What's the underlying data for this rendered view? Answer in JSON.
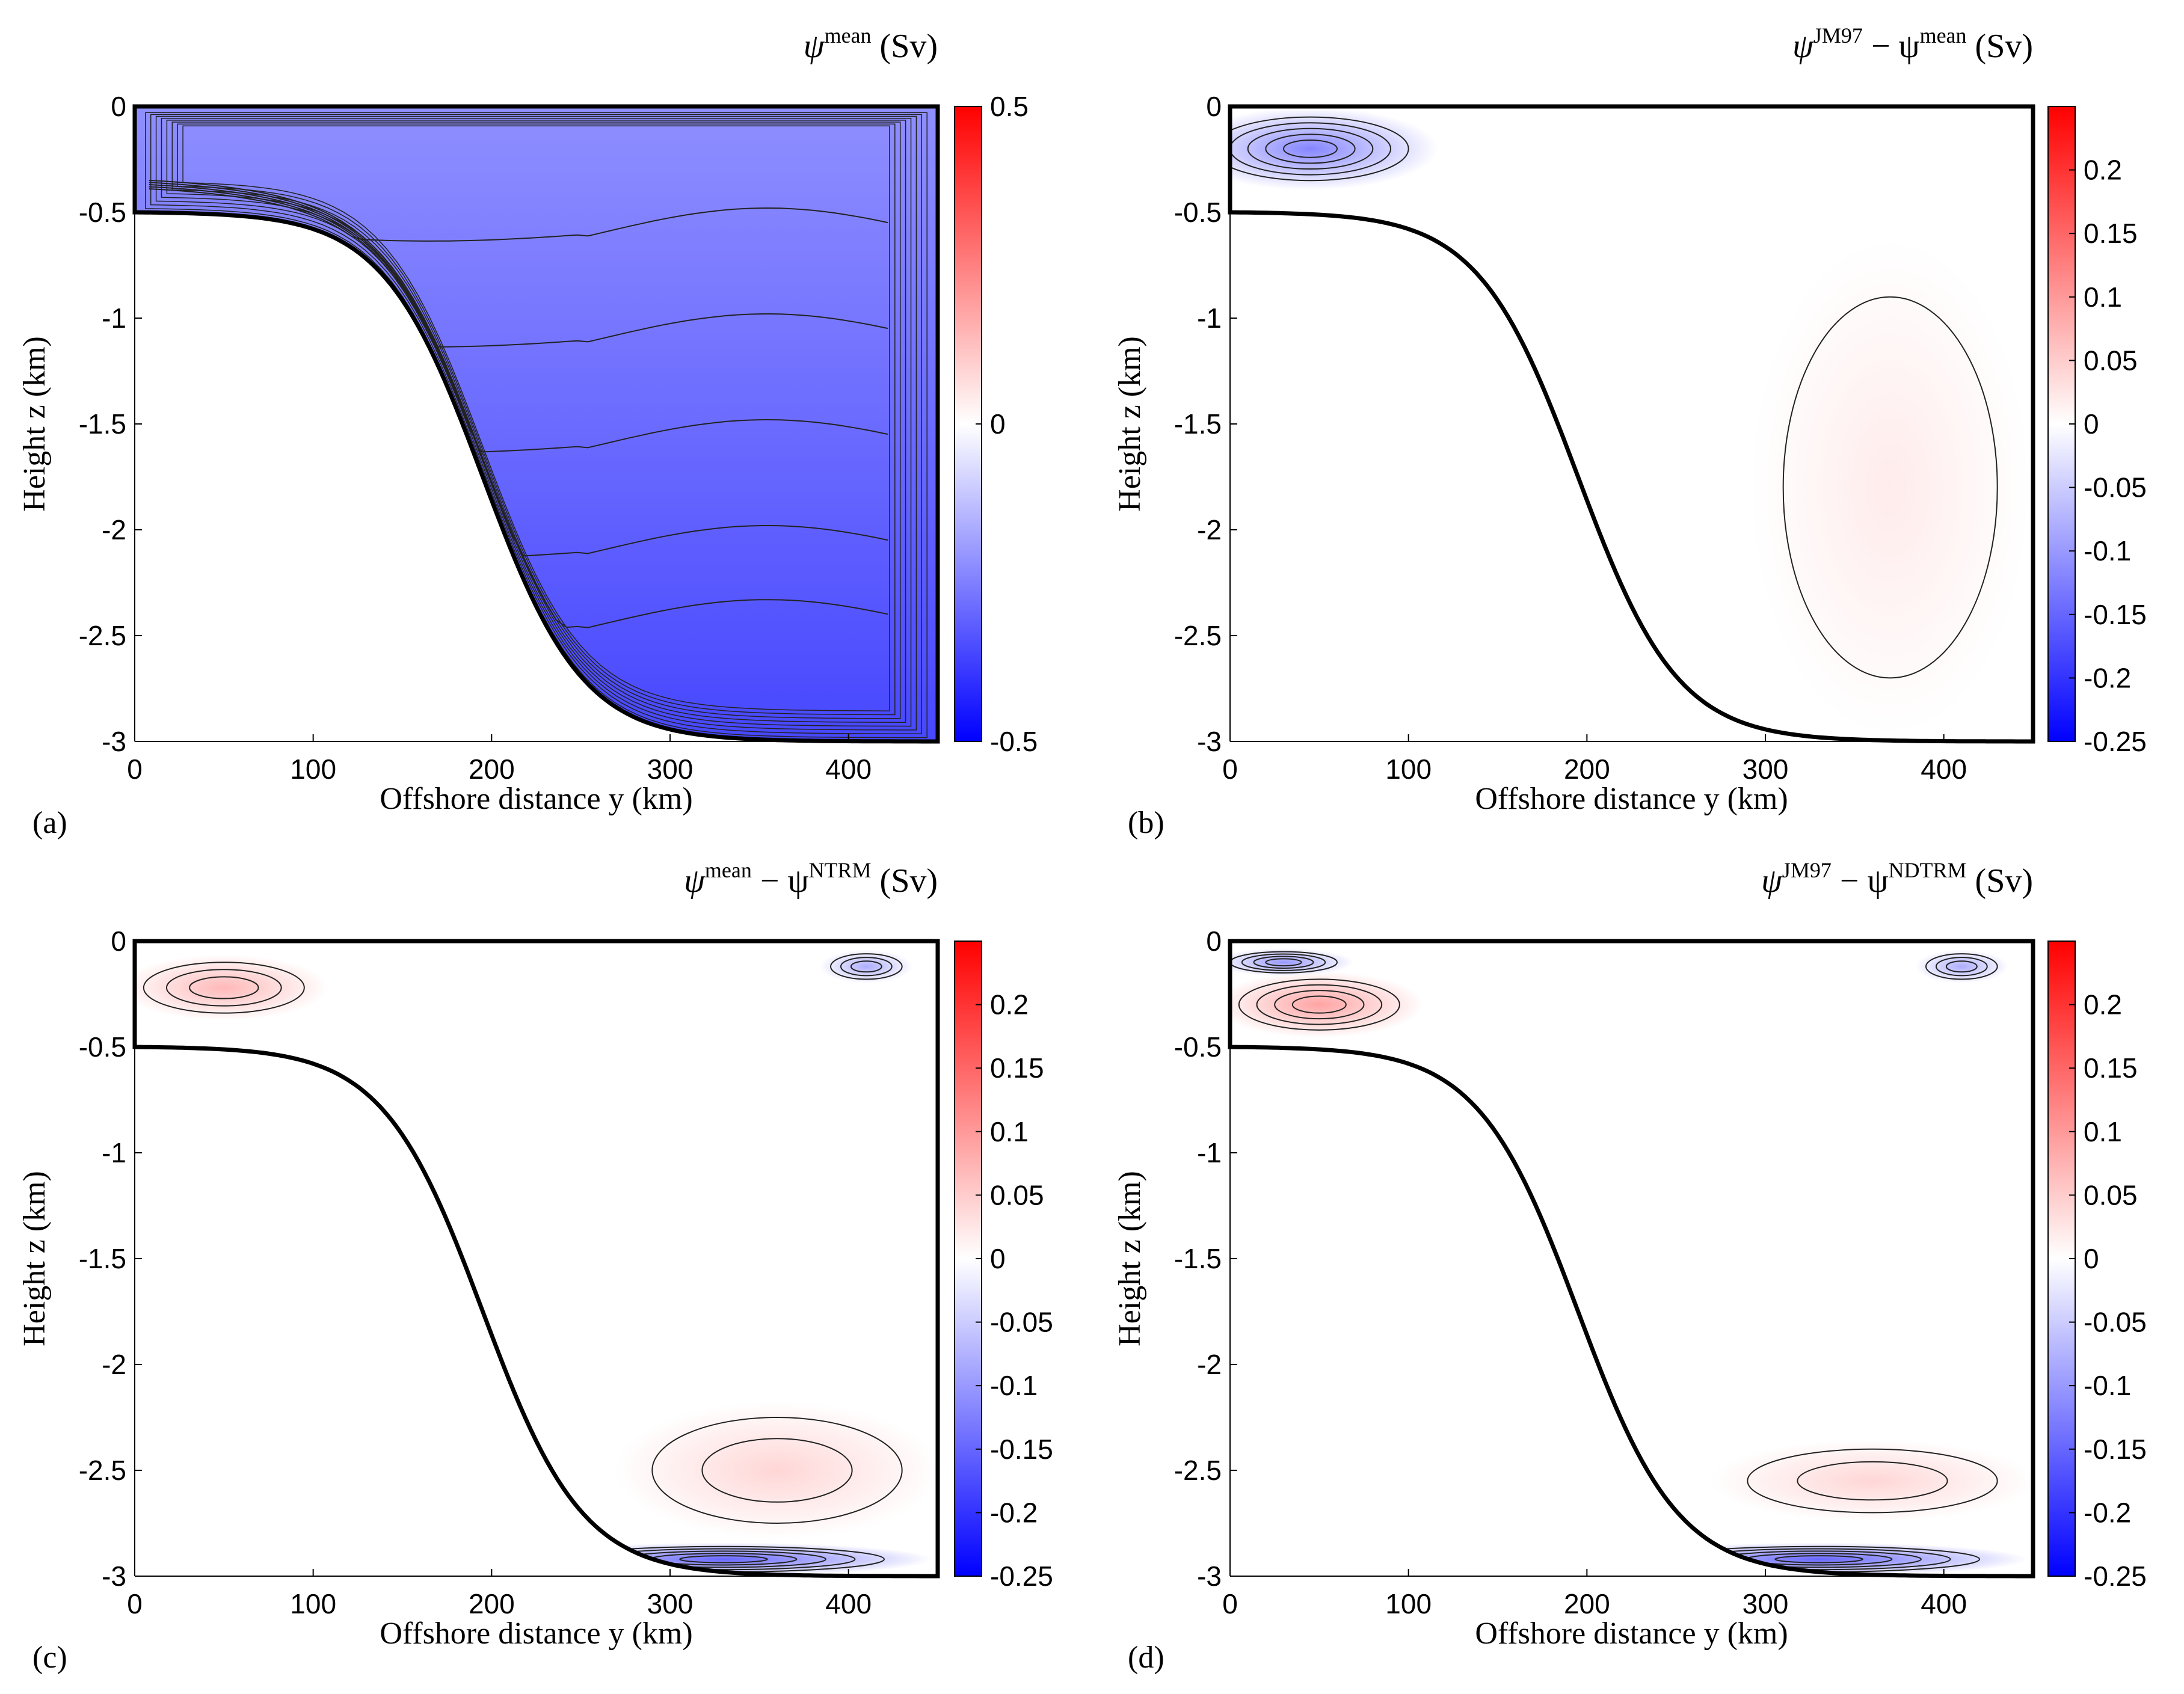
{
  "chart_data": [
    {
      "type": "heatmap",
      "panel_label": "(a)",
      "title": {
        "main": "ψ",
        "sup": "mean",
        "unit": " (Sv)"
      },
      "xlabel": "Offshore distance y (km)",
      "ylabel": "Height z (km)",
      "xlim": [
        0,
        450
      ],
      "ylim": [
        -3,
        0
      ],
      "xticks": [
        0,
        100,
        200,
        300,
        400
      ],
      "xtick_labels": [
        "0",
        "100",
        "200",
        "300",
        "400"
      ],
      "yticks": [
        0,
        -0.5,
        -1,
        -1.5,
        -2,
        -2.5,
        -3
      ],
      "ytick_labels": [
        "0",
        "-0.5",
        "-1",
        "-1.5",
        "-2",
        "-2.5",
        "-3"
      ],
      "colorbar": {
        "range": [
          -0.5,
          0.5
        ],
        "ticks": [
          0.5,
          0,
          -0.5
        ],
        "tick_labels": [
          "0.5",
          "0",
          "-0.5"
        ],
        "colormap": [
          "#0000ff",
          "#ffffff",
          "#ff0000"
        ]
      },
      "topography": "shelf depth 0.5 km to y≈100 km, slope to 3 km depth at y≈300 km, flat to 450 km",
      "features": [
        {
          "kind": "uniform-negative",
          "value": -0.3
        }
      ]
    },
    {
      "type": "heatmap",
      "panel_label": "(b)",
      "title": {
        "main": "ψ",
        "sup": "JM97",
        "mid": " − ψ",
        "sup2": "mean",
        "unit": " (Sv)"
      },
      "xlabel": "Offshore distance y (km)",
      "ylabel": "Height z (km)",
      "xlim": [
        0,
        450
      ],
      "ylim": [
        -3,
        0
      ],
      "xticks": [
        0,
        100,
        200,
        300,
        400
      ],
      "xtick_labels": [
        "0",
        "100",
        "200",
        "300",
        "400"
      ],
      "yticks": [
        0,
        -0.5,
        -1,
        -1.5,
        -2,
        -2.5,
        -3
      ],
      "ytick_labels": [
        "0",
        "-0.5",
        "-1",
        "-1.5",
        "-2",
        "-2.5",
        "-3"
      ],
      "colorbar": {
        "range": [
          -0.25,
          0.25
        ],
        "ticks": [
          0.2,
          0.15,
          0.1,
          0.05,
          0,
          -0.05,
          -0.1,
          -0.15,
          -0.2,
          -0.25
        ],
        "tick_labels": [
          "0.2",
          "0.15",
          "0.1",
          "0.05",
          "0",
          "-0.05",
          "-0.1",
          "-0.15",
          "-0.2",
          "-0.25"
        ],
        "colormap": [
          "#0000ff",
          "#ffffff",
          "#ff0000"
        ]
      },
      "features": [
        {
          "kind": "blob",
          "y": 45,
          "z": -0.2,
          "ry": 55,
          "rz": 0.15,
          "value": -0.12
        },
        {
          "kind": "blob",
          "y": 370,
          "z": -1.8,
          "ry": 60,
          "rz": 0.9,
          "value": 0.02
        }
      ]
    },
    {
      "type": "heatmap",
      "panel_label": "(c)",
      "title": {
        "main": "ψ",
        "sup": "mean",
        "mid": " − ψ",
        "sup2": "NTRM",
        "unit": " (Sv)"
      },
      "xlabel": "Offshore distance y (km)",
      "ylabel": "Height z (km)",
      "xlim": [
        0,
        450
      ],
      "ylim": [
        -3,
        0
      ],
      "xticks": [
        0,
        100,
        200,
        300,
        400
      ],
      "xtick_labels": [
        "0",
        "100",
        "200",
        "300",
        "400"
      ],
      "yticks": [
        0,
        -0.5,
        -1,
        -1.5,
        -2,
        -2.5,
        -3
      ],
      "ytick_labels": [
        "0",
        "-0.5",
        "-1",
        "-1.5",
        "-2",
        "-2.5",
        "-3"
      ],
      "colorbar": {
        "range": [
          -0.25,
          0.25
        ],
        "ticks": [
          0.2,
          0.15,
          0.1,
          0.05,
          0,
          -0.05,
          -0.1,
          -0.15,
          -0.2,
          -0.25
        ],
        "tick_labels": [
          "0.2",
          "0.15",
          "0.1",
          "0.05",
          "0",
          "-0.05",
          "-0.1",
          "-0.15",
          "-0.2",
          "-0.25"
        ],
        "colormap": [
          "#0000ff",
          "#ffffff",
          "#ff0000"
        ]
      },
      "features": [
        {
          "kind": "blob",
          "y": 50,
          "z": -0.22,
          "ry": 45,
          "rz": 0.12,
          "value": 0.07
        },
        {
          "kind": "blob",
          "y": 360,
          "z": -2.5,
          "ry": 70,
          "rz": 0.25,
          "value": 0.04
        },
        {
          "kind": "blob",
          "y": 410,
          "z": -0.12,
          "ry": 20,
          "rz": 0.06,
          "value": -0.08
        },
        {
          "kind": "blob",
          "y": 330,
          "z": -2.92,
          "ry": 90,
          "rz": 0.06,
          "value": -0.15
        }
      ]
    },
    {
      "type": "heatmap",
      "panel_label": "(d)",
      "title": {
        "main": "ψ",
        "sup": "JM97",
        "mid": " − ψ",
        "sup2": "NDTRM",
        "unit": " (Sv)"
      },
      "xlabel": "Offshore distance y (km)",
      "ylabel": "Height z (km)",
      "xlim": [
        0,
        450
      ],
      "ylim": [
        -3,
        0
      ],
      "xticks": [
        0,
        100,
        200,
        300,
        400
      ],
      "xtick_labels": [
        "0",
        "100",
        "200",
        "300",
        "400"
      ],
      "yticks": [
        0,
        -0.5,
        -1,
        -1.5,
        -2,
        -2.5,
        -3
      ],
      "ytick_labels": [
        "0",
        "-0.5",
        "-1",
        "-1.5",
        "-2",
        "-2.5",
        "-3"
      ],
      "colorbar": {
        "range": [
          -0.25,
          0.25
        ],
        "ticks": [
          0.2,
          0.15,
          0.1,
          0.05,
          0,
          -0.05,
          -0.1,
          -0.15,
          -0.2,
          -0.25
        ],
        "tick_labels": [
          "0.2",
          "0.15",
          "0.1",
          "0.05",
          "0",
          "-0.05",
          "-0.1",
          "-0.15",
          "-0.2",
          "-0.25"
        ],
        "colormap": [
          "#0000ff",
          "#ffffff",
          "#ff0000"
        ]
      },
      "features": [
        {
          "kind": "blob",
          "y": 50,
          "z": -0.3,
          "ry": 45,
          "rz": 0.12,
          "value": 0.09
        },
        {
          "kind": "blob",
          "y": 30,
          "z": -0.1,
          "ry": 30,
          "rz": 0.05,
          "value": -0.1
        },
        {
          "kind": "blob",
          "y": 360,
          "z": -2.55,
          "ry": 70,
          "rz": 0.15,
          "value": 0.04
        },
        {
          "kind": "blob",
          "y": 410,
          "z": -0.12,
          "ry": 20,
          "rz": 0.06,
          "value": -0.08
        },
        {
          "kind": "blob",
          "y": 330,
          "z": -2.92,
          "ry": 90,
          "rz": 0.06,
          "value": -0.15
        }
      ]
    }
  ]
}
